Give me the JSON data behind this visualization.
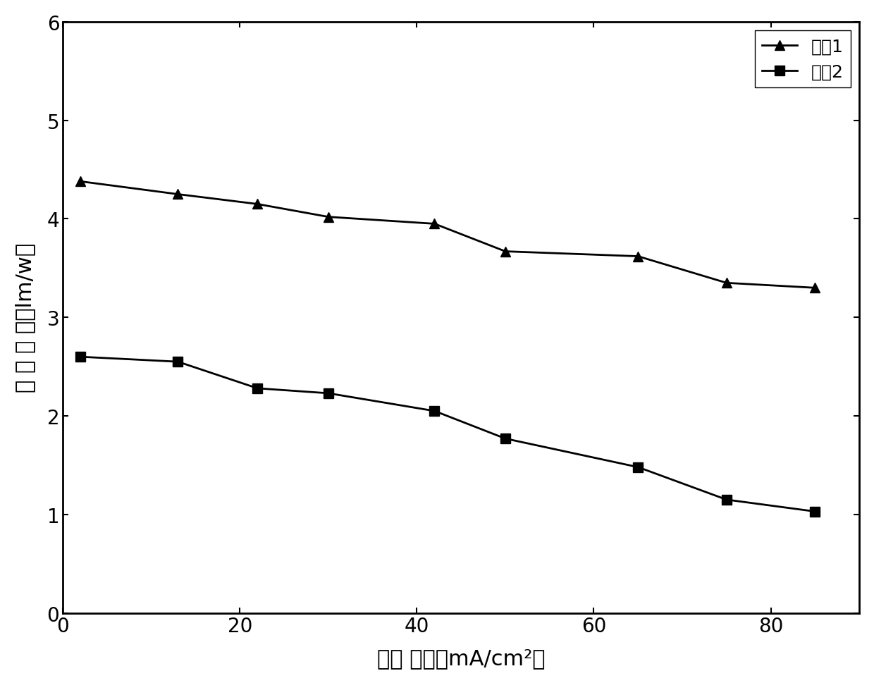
{
  "curve1_x": [
    2,
    13,
    22,
    30,
    42,
    50,
    65,
    75,
    85
  ],
  "curve1_y": [
    4.38,
    4.25,
    4.15,
    4.02,
    3.95,
    3.67,
    3.62,
    3.35,
    3.3
  ],
  "curve2_x": [
    2,
    13,
    22,
    30,
    42,
    50,
    65,
    75,
    85
  ],
  "curve2_y": [
    2.6,
    2.55,
    2.28,
    2.23,
    2.05,
    1.77,
    1.48,
    1.15,
    1.03
  ],
  "curve1_label": "曲线1",
  "curve2_label": "曲线2",
  "xlabel": "电流 密度（mA/cm²）",
  "ylabel": "流 明 效 率（lm/w）",
  "xlim": [
    0,
    90
  ],
  "ylim": [
    0,
    6
  ],
  "xticks": [
    0,
    20,
    40,
    60,
    80
  ],
  "yticks": [
    0,
    1,
    2,
    3,
    4,
    5,
    6
  ],
  "line_color": "#000000",
  "marker1": "^",
  "marker2": "s",
  "marker_size": 10,
  "line_width": 2.0,
  "legend_fontsize": 18,
  "axis_label_fontsize": 22,
  "tick_fontsize": 20,
  "figure_facecolor": "#ffffff",
  "axes_facecolor": "#ffffff"
}
